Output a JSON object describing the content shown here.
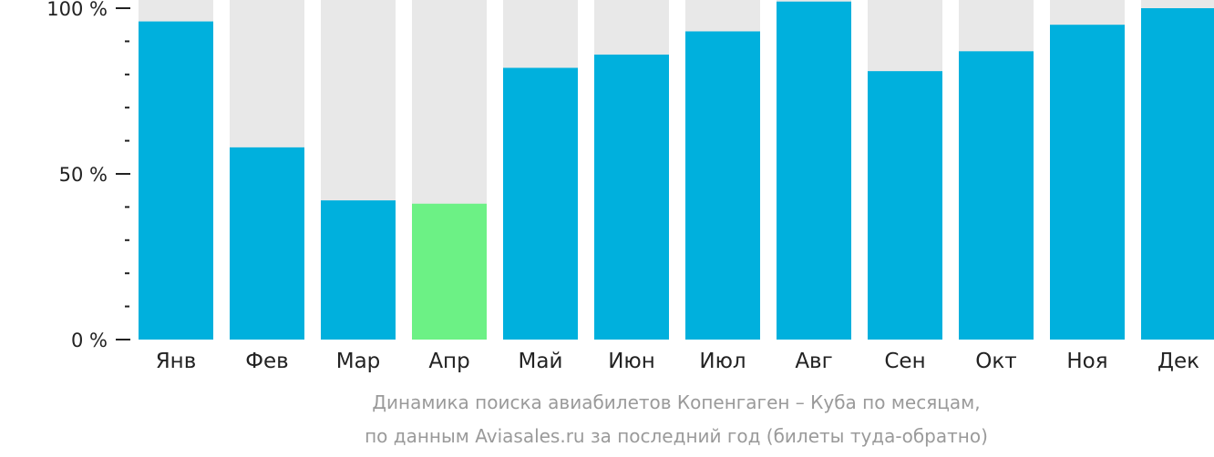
{
  "chart_data": {
    "type": "bar",
    "categories": [
      "Янв",
      "Фев",
      "Мар",
      "Апр",
      "Май",
      "Июн",
      "Июл",
      "Авг",
      "Сен",
      "Окт",
      "Ноя",
      "Дек"
    ],
    "values": [
      96,
      58,
      42,
      41,
      82,
      86,
      93,
      102,
      81,
      87,
      95,
      100
    ],
    "highlight_index": 3,
    "ylim": [
      0,
      100
    ],
    "y_ticks": [
      {
        "value": 0,
        "label": "0 %"
      },
      {
        "value": 50,
        "label": "50 %"
      },
      {
        "value": 100,
        "label": "100 %"
      }
    ],
    "y_minor_step": 10,
    "grid": false,
    "colors": {
      "bar": "#00b0dd",
      "highlight": "#6cf185",
      "background_bar": "#e8e8e8",
      "axis": "#222222"
    }
  },
  "caption": {
    "line1": "Динамика поиска авиабилетов Копенгаген – Куба по месяцам,",
    "line2": "по данным Aviasales.ru за последний год (билеты туда-обратно)"
  }
}
